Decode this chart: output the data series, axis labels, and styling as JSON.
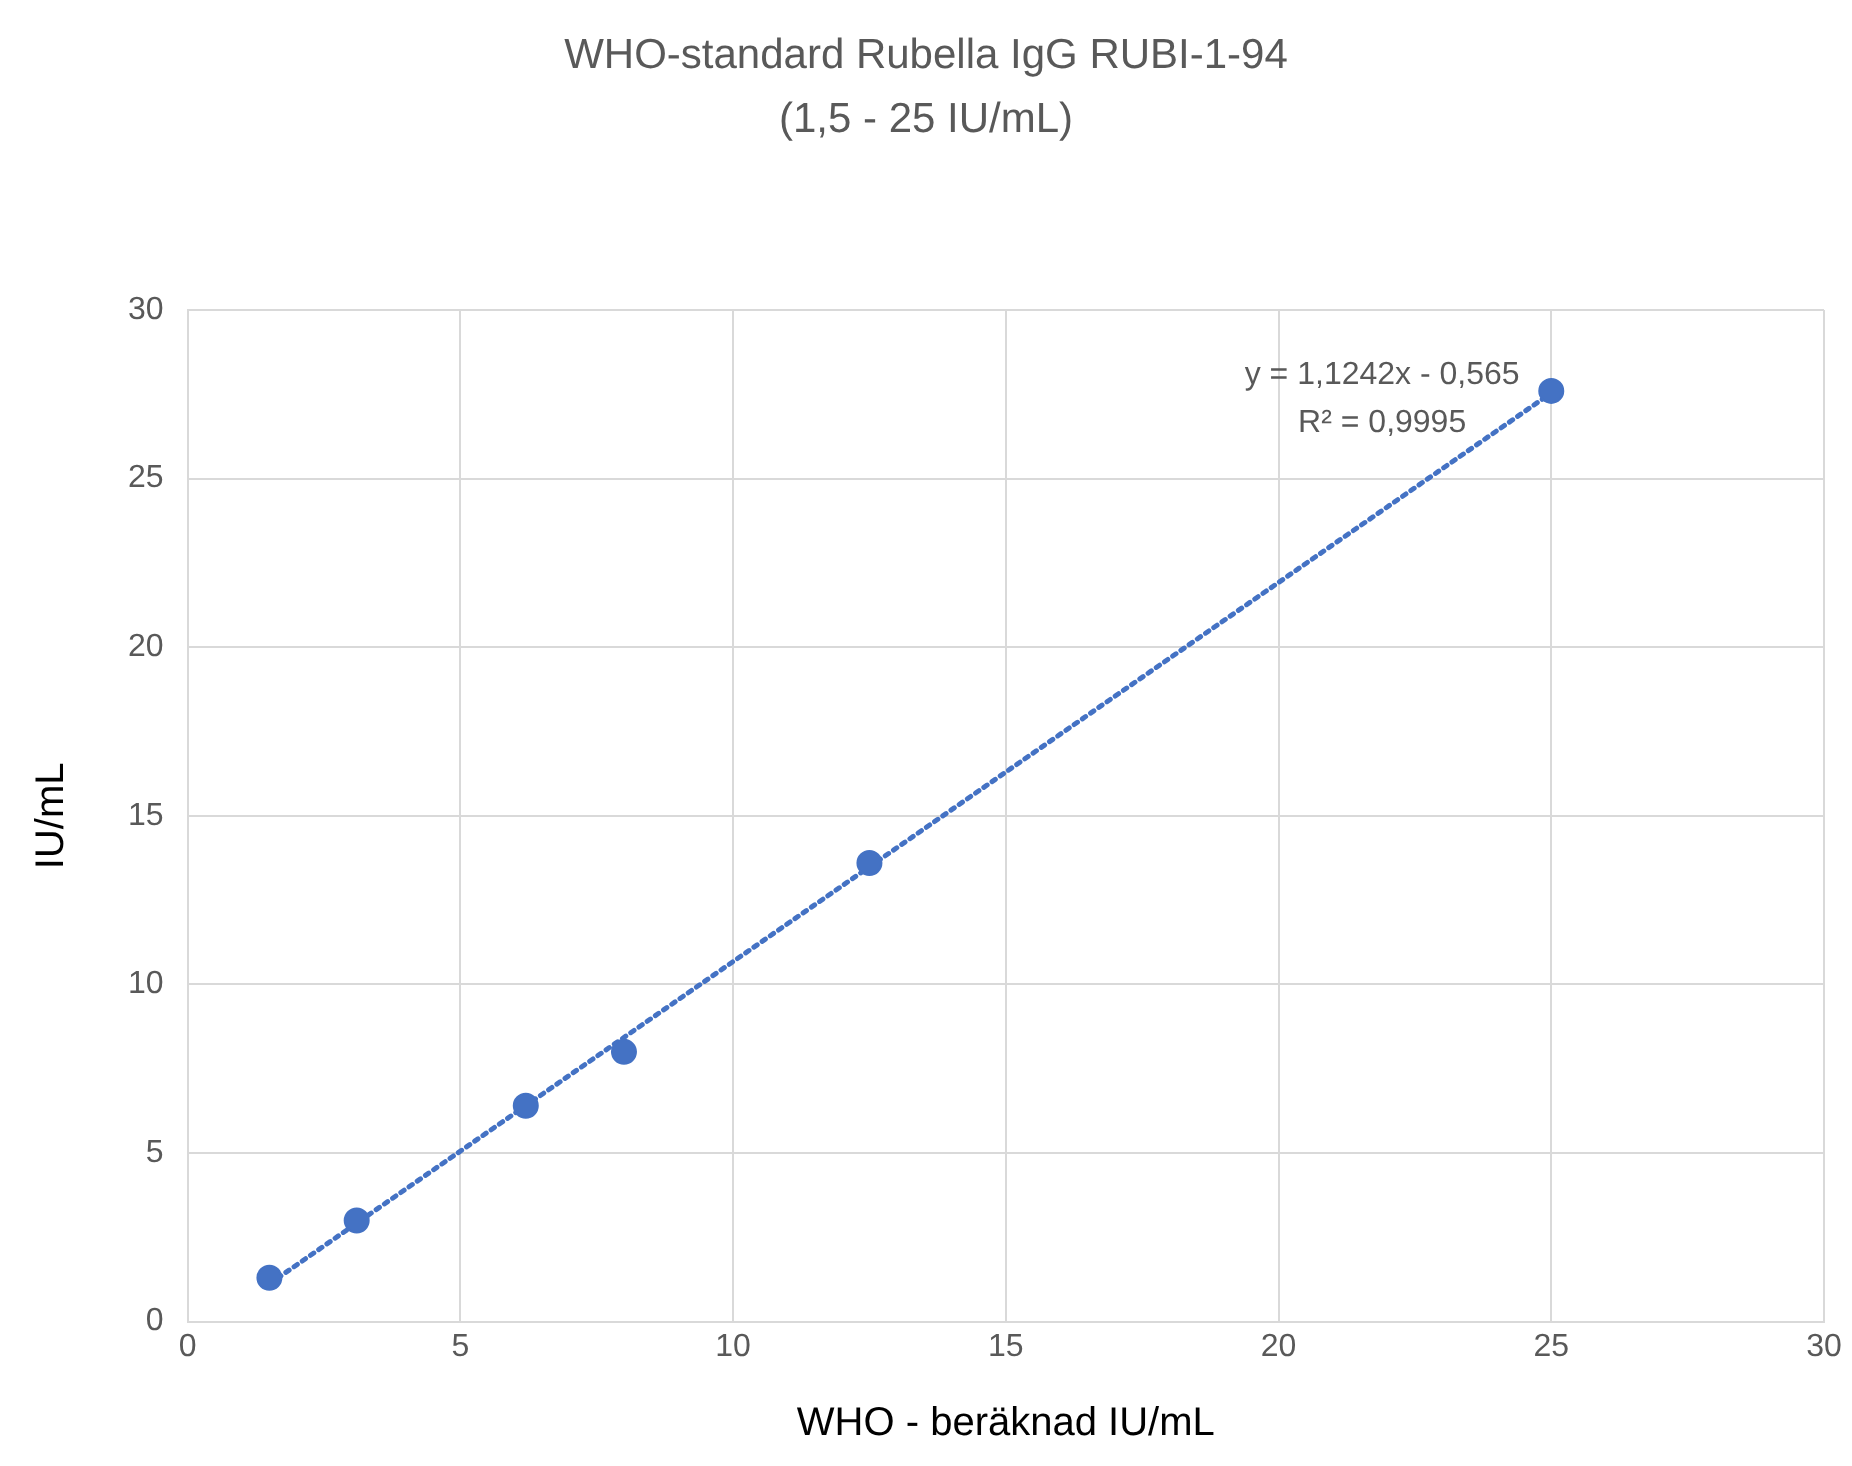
{
  "chart_data": {
    "type": "scatter",
    "title": "WHO-standard Rubella IgG RUBI-1-94",
    "subtitle": "(1,5 - 25 IU/mL)",
    "xlabel": "WHO - beräknad IU/mL",
    "ylabel": "IU/mL",
    "x": [
      1.5,
      3.1,
      6.2,
      8,
      12.5,
      25
    ],
    "series": [
      {
        "color": "#4472c4",
        "values": [
          1.3,
          3.0,
          6.4,
          8.0,
          13.6,
          27.6
        ],
        "marker": "circle"
      },
      {
        "type": "line",
        "color": "#4472c4",
        "x": [
          1.5,
          25
        ],
        "values": [
          1.12,
          27.54
        ],
        "marker": "none",
        "line_style": "dotted"
      }
    ],
    "annotations": [
      "y = 1,1242x - 0,565",
      "R² = 0,9995"
    ],
    "xlim": [
      0,
      30
    ],
    "xticks": [
      0,
      5,
      10,
      15,
      20,
      25,
      30
    ],
    "ylim": [
      0,
      30
    ],
    "yticks": [
      0,
      5,
      10,
      15,
      20,
      25,
      30
    ],
    "grid": true,
    "legend": false
  }
}
